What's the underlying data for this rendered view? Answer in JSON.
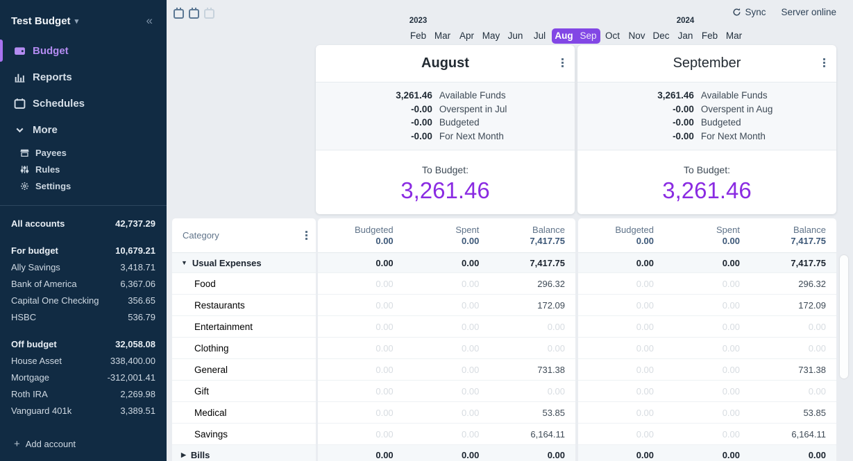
{
  "icons": {
    "caret_down": "▾",
    "collapse": "«",
    "plus": "+",
    "expanded": "▼",
    "collapsed": "▶"
  },
  "colors": {
    "sidebar_bg": "#112B43",
    "accent_purple": "#8247E5",
    "to_budget_purple": "#8A2BE2",
    "active_nav_purple": "#B48CF2",
    "faded_value": "#D7DCE1"
  },
  "sidebar": {
    "title": "Test Budget",
    "nav": [
      {
        "label": "Budget",
        "icon": "wallet-icon",
        "active": true
      },
      {
        "label": "Reports",
        "icon": "bar-chart-icon",
        "active": false
      },
      {
        "label": "Schedules",
        "icon": "calendar-icon",
        "active": false
      }
    ],
    "more_label": "More",
    "subnav": [
      {
        "label": "Payees",
        "icon": "storefront-icon"
      },
      {
        "label": "Rules",
        "icon": "sliders-icon"
      },
      {
        "label": "Settings",
        "icon": "gear-icon"
      }
    ],
    "accounts": {
      "all": {
        "label": "All accounts",
        "value": "42,737.29"
      },
      "groups": [
        {
          "label": "For budget",
          "value": "10,679.21",
          "rows": [
            {
              "name": "Ally Savings",
              "value": "3,418.71"
            },
            {
              "name": "Bank of America",
              "value": "6,367.06"
            },
            {
              "name": "Capital One Checking",
              "value": "356.65"
            },
            {
              "name": "HSBC",
              "value": "536.79"
            }
          ]
        },
        {
          "label": "Off budget",
          "value": "32,058.08",
          "rows": [
            {
              "name": "House Asset",
              "value": "338,400.00"
            },
            {
              "name": "Mortgage",
              "value": "-312,001.41"
            },
            {
              "name": "Roth IRA",
              "value": "2,269.98"
            },
            {
              "name": "Vanguard 401k",
              "value": "3,389.51"
            }
          ]
        }
      ],
      "add_label": "Add account"
    }
  },
  "topbar": {
    "sync_label": "Sync",
    "server_status": "Server online",
    "month_view_buttons": [
      {
        "months": 1,
        "active": true
      },
      {
        "months": 2,
        "active": true
      },
      {
        "months": 3,
        "active": false
      }
    ]
  },
  "months_bar": {
    "years": [
      {
        "label": "2023",
        "month_index": 0
      },
      {
        "label": "2024",
        "month_index": 11
      }
    ],
    "months": [
      {
        "label": "Feb"
      },
      {
        "label": "Mar"
      },
      {
        "label": "Apr"
      },
      {
        "label": "May"
      },
      {
        "label": "Jun"
      },
      {
        "label": "Jul"
      },
      {
        "label": "Aug",
        "selected": true,
        "bold": true
      },
      {
        "label": "Sep",
        "selected": true
      },
      {
        "label": "Oct"
      },
      {
        "label": "Nov"
      },
      {
        "label": "Dec"
      },
      {
        "label": "Jan"
      },
      {
        "label": "Feb"
      },
      {
        "label": "Mar"
      }
    ]
  },
  "cards": [
    {
      "title": "August",
      "title_bold": true,
      "summary": [
        {
          "value": "3,261.46",
          "label": "Available Funds"
        },
        {
          "value": "-0.00",
          "label": "Overspent in Jul"
        },
        {
          "value": "-0.00",
          "label": "Budgeted"
        },
        {
          "value": "-0.00",
          "label": "For Next Month"
        }
      ],
      "to_budget_label": "To Budget:",
      "to_budget_value": "3,261.46"
    },
    {
      "title": "September",
      "title_bold": false,
      "summary": [
        {
          "value": "3,261.46",
          "label": "Available Funds"
        },
        {
          "value": "-0.00",
          "label": "Overspent in Aug"
        },
        {
          "value": "-0.00",
          "label": "Budgeted"
        },
        {
          "value": "-0.00",
          "label": "For Next Month"
        }
      ],
      "to_budget_label": "To Budget:",
      "to_budget_value": "3,261.46"
    }
  ],
  "table": {
    "category_label": "Category",
    "columns": [
      "Budgeted",
      "Spent",
      "Balance"
    ],
    "totals": {
      "budgeted": "0.00",
      "spent": "0.00",
      "balance": "7,417.75"
    },
    "rows": [
      {
        "type": "group",
        "name": "Usual Expenses",
        "expanded": true,
        "months": [
          [
            "0.00",
            "0.00",
            "7,417.75"
          ],
          [
            "0.00",
            "0.00",
            "7,417.75"
          ]
        ]
      },
      {
        "type": "category",
        "name": "Food",
        "months": [
          [
            "0.00",
            "0.00",
            "296.32"
          ],
          [
            "0.00",
            "0.00",
            "296.32"
          ]
        ]
      },
      {
        "type": "category",
        "name": "Restaurants",
        "months": [
          [
            "0.00",
            "0.00",
            "172.09"
          ],
          [
            "0.00",
            "0.00",
            "172.09"
          ]
        ]
      },
      {
        "type": "category",
        "name": "Entertainment",
        "months": [
          [
            "0.00",
            "0.00",
            "0.00"
          ],
          [
            "0.00",
            "0.00",
            "0.00"
          ]
        ]
      },
      {
        "type": "category",
        "name": "Clothing",
        "months": [
          [
            "0.00",
            "0.00",
            "0.00"
          ],
          [
            "0.00",
            "0.00",
            "0.00"
          ]
        ]
      },
      {
        "type": "category",
        "name": "General",
        "months": [
          [
            "0.00",
            "0.00",
            "731.38"
          ],
          [
            "0.00",
            "0.00",
            "731.38"
          ]
        ]
      },
      {
        "type": "category",
        "name": "Gift",
        "months": [
          [
            "0.00",
            "0.00",
            "0.00"
          ],
          [
            "0.00",
            "0.00",
            "0.00"
          ]
        ]
      },
      {
        "type": "category",
        "name": "Medical",
        "months": [
          [
            "0.00",
            "0.00",
            "53.85"
          ],
          [
            "0.00",
            "0.00",
            "53.85"
          ]
        ]
      },
      {
        "type": "category",
        "name": "Savings",
        "months": [
          [
            "0.00",
            "0.00",
            "6,164.11"
          ],
          [
            "0.00",
            "0.00",
            "6,164.11"
          ]
        ]
      },
      {
        "type": "group",
        "name": "Bills",
        "expanded": false,
        "months": [
          [
            "0.00",
            "0.00",
            "0.00"
          ],
          [
            "0.00",
            "0.00",
            "0.00"
          ]
        ]
      }
    ]
  }
}
